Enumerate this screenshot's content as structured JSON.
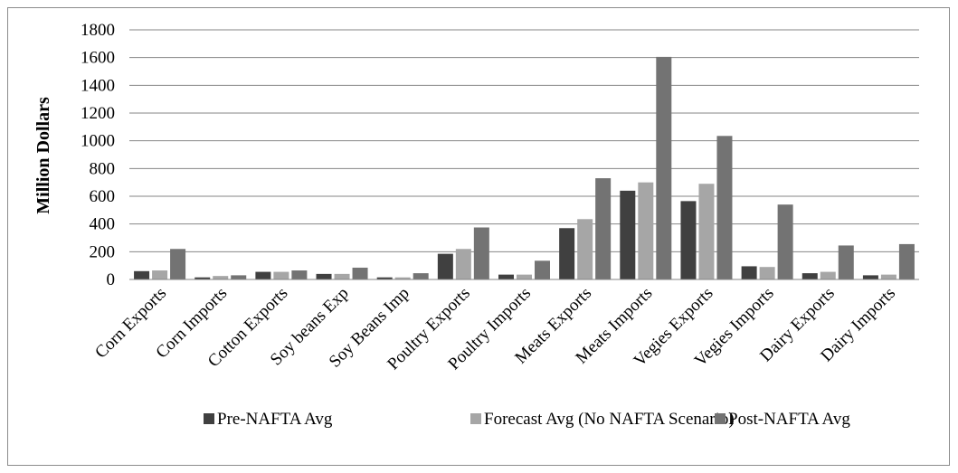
{
  "chart_data": {
    "type": "bar",
    "title": "",
    "xlabel": "",
    "ylabel": "Million Dollars",
    "ylim": [
      0,
      1800
    ],
    "yticks": [
      0,
      200,
      400,
      600,
      800,
      1000,
      1200,
      1400,
      1600,
      1800
    ],
    "grid": true,
    "legend_position": "bottom",
    "categories": [
      "Corn Exports",
      "Corn Imports",
      "Cotton Exports",
      "Soy beans Exp",
      "Soy Beans Imp",
      "Poultry Exports",
      "Poultry Imports",
      "Meats Exports",
      "Meats Imports",
      "Vegies Exports",
      "Vegies Imports",
      "Dairy Exports",
      "Dairy Imports"
    ],
    "series": [
      {
        "name": "Pre-NAFTA Avg",
        "color": "#404040",
        "values": [
          60,
          15,
          55,
          40,
          15,
          185,
          35,
          370,
          640,
          565,
          95,
          45,
          30
        ]
      },
      {
        "name": "Forecast Avg (No NAFTA Scenario)",
        "color": "#a6a6a6",
        "values": [
          65,
          25,
          55,
          40,
          15,
          220,
          35,
          435,
          700,
          690,
          90,
          55,
          35
        ]
      },
      {
        "name": "Post-NAFTA Avg",
        "color": "#737373",
        "values": [
          220,
          30,
          65,
          85,
          45,
          375,
          135,
          730,
          1605,
          1035,
          540,
          245,
          255
        ]
      }
    ]
  }
}
